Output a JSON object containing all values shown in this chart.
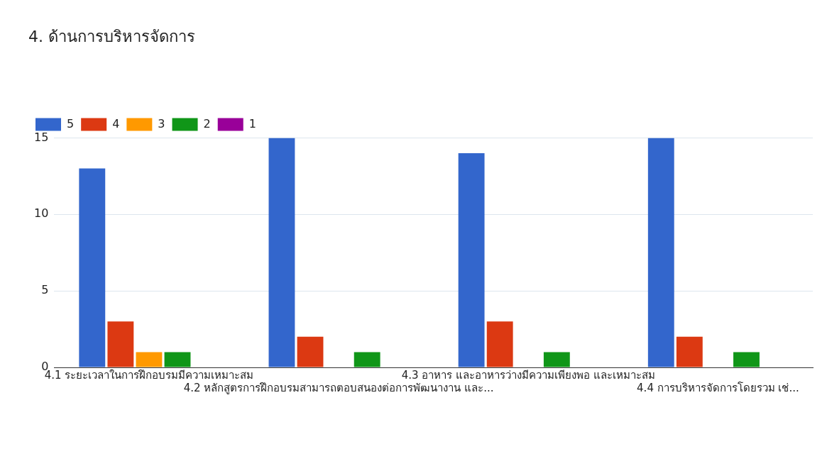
{
  "chart_data": {
    "type": "bar",
    "title": "4. ด้านการบริหารจัดการ",
    "categories": [
      "4.1 ระยะเวลาในการฝึกอบรมมีความเหมาะสม",
      "4.2 หลักสูตรการฝึกอบรมสามารถตอบสนองต่อการพัฒนางาน และ...",
      "4.3 อาหาร และอาหารว่างมีความเพียงพอ และเหมาะสม",
      "4.4 การบริหารจัดการโดยรวม เช่..."
    ],
    "series": [
      {
        "name": "5",
        "color": "#3366cc",
        "values": [
          13,
          15,
          14,
          15
        ]
      },
      {
        "name": "4",
        "color": "#dc3912",
        "values": [
          3,
          2,
          3,
          2
        ]
      },
      {
        "name": "3",
        "color": "#ff9900",
        "values": [
          1,
          0,
          0,
          0
        ]
      },
      {
        "name": "2",
        "color": "#109618",
        "values": [
          1,
          1,
          1,
          1
        ]
      },
      {
        "name": "1",
        "color": "#990099",
        "values": [
          0,
          0,
          0,
          0
        ]
      }
    ],
    "ylim": [
      0,
      15
    ],
    "yticks": [
      0,
      5,
      10,
      15
    ],
    "grid": "y",
    "legend": "top left"
  }
}
